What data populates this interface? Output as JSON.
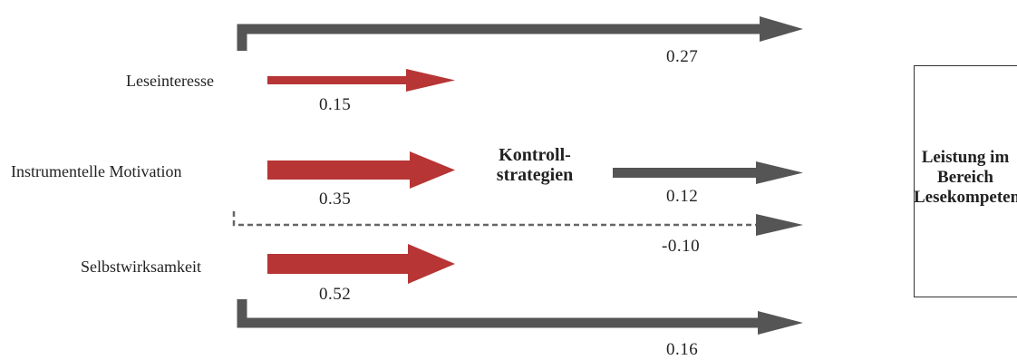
{
  "predictors": [
    {
      "label": "Leseinteresse"
    },
    {
      "label": "Instrumentelle Motivation"
    },
    {
      "label": "Selbstwirksamkeit"
    }
  ],
  "mediator": {
    "line1": "Kontroll-",
    "line2": "strategien"
  },
  "outcome": {
    "line1": "Leistung im",
    "line2": "Bereich",
    "line3": "Lesekompetenz"
  },
  "paths": {
    "leseinteresse_to_mediator": "0.15",
    "motivation_to_mediator": "0.35",
    "selbstwirksamkeit_to_mediator": "0.52",
    "mediator_to_outcome": "0.12",
    "leseinteresse_direct": "0.27",
    "motivation_direct": "-0.10",
    "selbstwirksamkeit_direct": "0.16"
  },
  "colors": {
    "red_arrow": "#b73535",
    "gray_arrow": "#555555",
    "dashed_line": "#666666"
  }
}
